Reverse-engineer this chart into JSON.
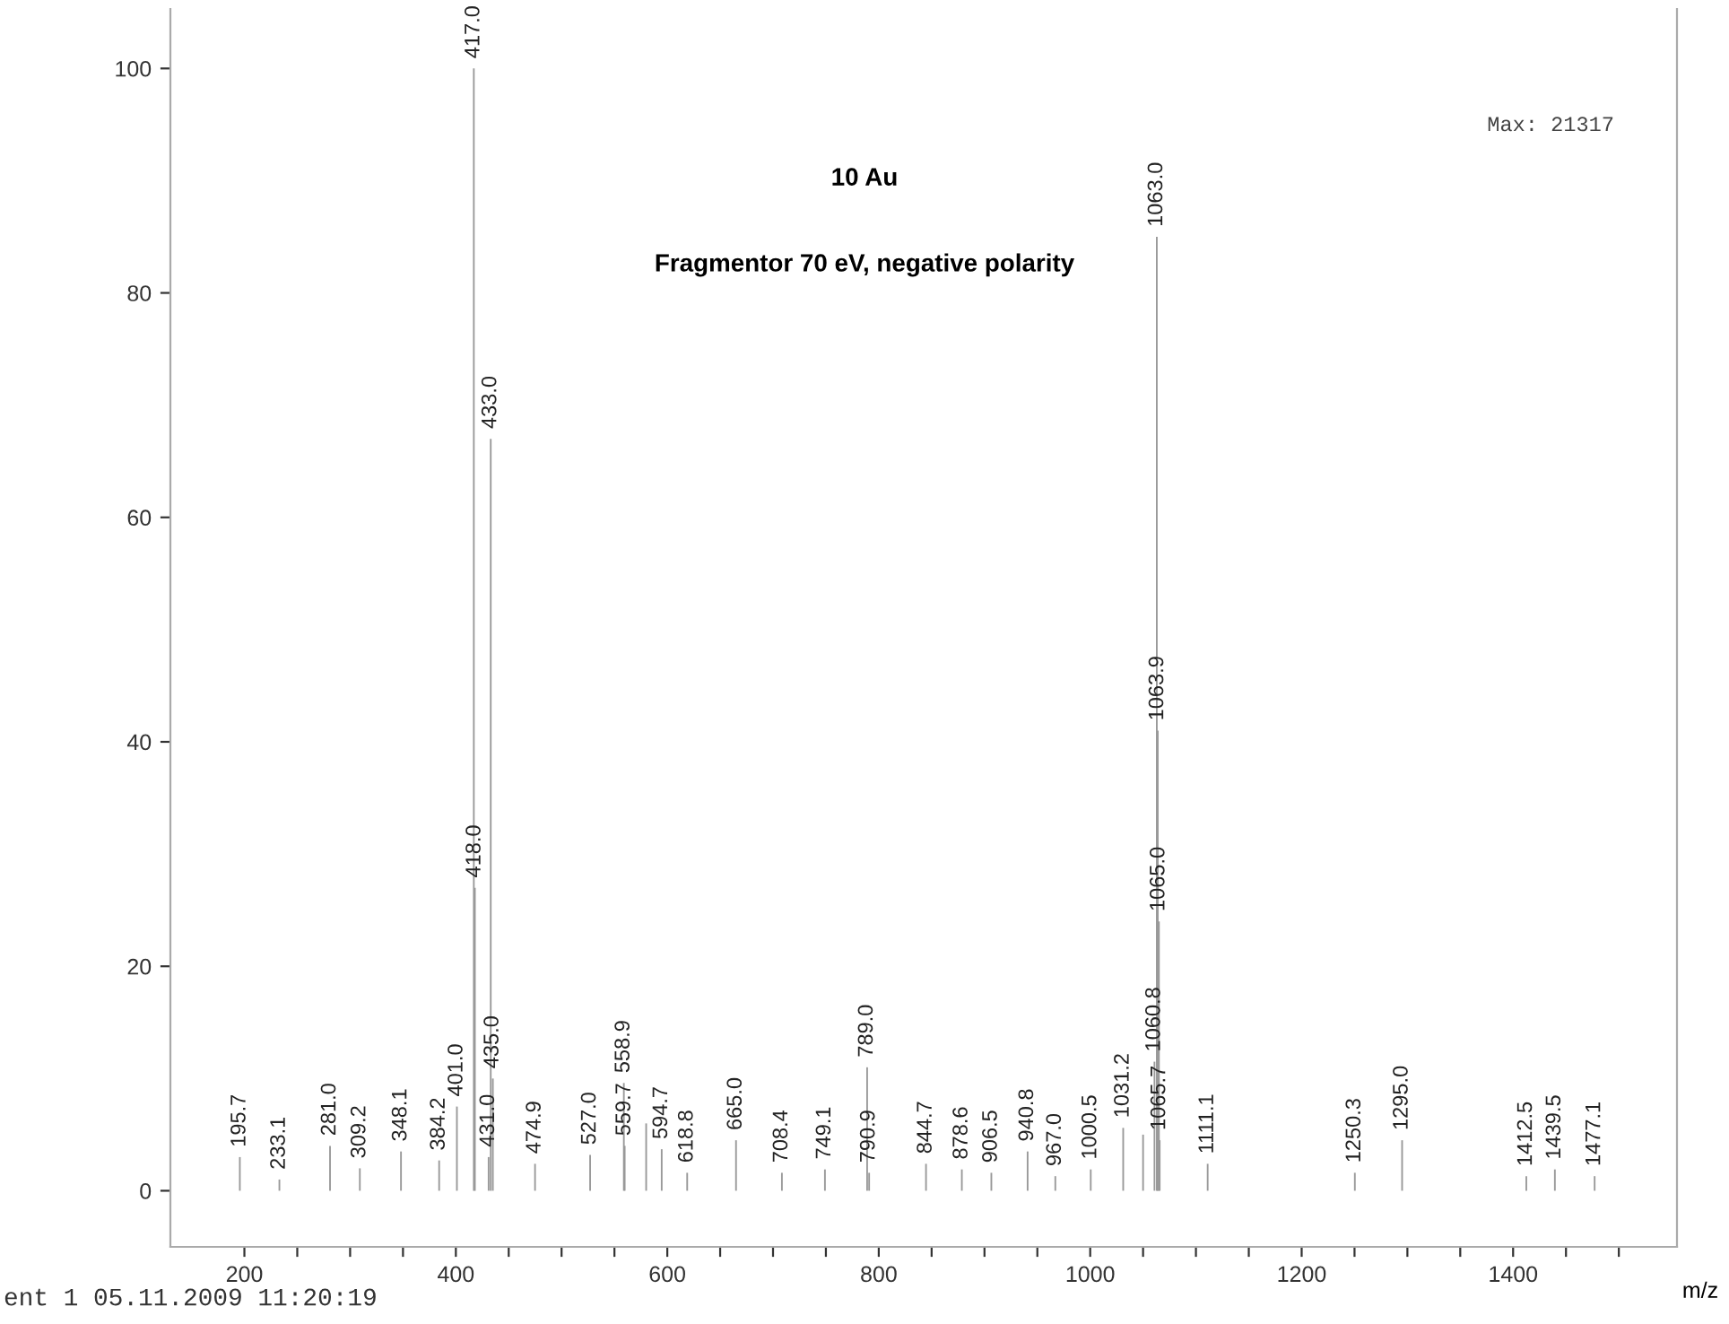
{
  "chart_data": {
    "type": "bar",
    "title": "10 Au",
    "subtitle": "Fragmentor 70 eV, negative polarity",
    "xlabel": "m/z",
    "x": [
      195.7,
      233.1,
      281.0,
      309.2,
      348.1,
      384.2,
      401.0,
      417.0,
      418.0,
      431.0,
      433.0,
      435.0,
      474.9,
      527.0,
      558.9,
      559.7,
      580.0,
      594.7,
      618.8,
      665.0,
      708.4,
      749.1,
      789.0,
      790.9,
      844.7,
      878.6,
      906.5,
      940.8,
      967.0,
      1000.5,
      1031.2,
      1050.0,
      1060.8,
      1063.0,
      1063.9,
      1065.0,
      1065.7,
      1111.1,
      1250.3,
      1295.0,
      1412.5,
      1439.5,
      1477.1
    ],
    "values": [
      3,
      1,
      4,
      2,
      3.5,
      2.7,
      7.5,
      100,
      27,
      3,
      67,
      10,
      2.4,
      3.2,
      9.6,
      4,
      6,
      3.7,
      1.6,
      4.5,
      1.6,
      1.9,
      11,
      1.6,
      2.4,
      1.9,
      1.6,
      3.5,
      1.3,
      1.9,
      5.6,
      5,
      11.5,
      85,
      41,
      24,
      4.5,
      2.4,
      1.6,
      4.5,
      1.3,
      1.9,
      1.3
    ],
    "color": "#999999",
    "xlim": [
      130,
      1555
    ],
    "ylim": [
      -5,
      105.3
    ],
    "xticks": [
      200,
      {
        "value": 250,
        "label": null
      },
      {
        "value": 300,
        "label": null
      },
      {
        "value": 350,
        "label": null
      },
      400,
      {
        "value": 450,
        "label": null
      },
      {
        "value": 500,
        "label": null
      },
      {
        "value": 550,
        "label": null
      },
      600,
      {
        "value": 650,
        "label": null
      },
      {
        "value": 700,
        "label": null
      },
      {
        "value": 750,
        "label": null
      },
      800,
      {
        "value": 850,
        "label": null
      },
      {
        "value": 900,
        "label": null
      },
      {
        "value": 950,
        "label": null
      },
      1000,
      {
        "value": 1050,
        "label": null
      },
      {
        "value": 1100,
        "label": null
      },
      {
        "value": 1150,
        "label": null
      },
      1200,
      {
        "value": 1250,
        "label": null
      },
      {
        "value": 1300,
        "label": null
      },
      {
        "value": 1350,
        "label": null
      },
      1400,
      {
        "value": 1450,
        "label": null
      },
      {
        "value": 1500,
        "label": null
      }
    ],
    "yticks": [
      0,
      20,
      40,
      60,
      80,
      100
    ],
    "annotations": [
      "Max: 21317",
      "ent 1 05.11.2009 11:20:19",
      {
        "text": "195.7",
        "x": 195.7,
        "y": 3
      },
      {
        "text": "233.1",
        "x": 233.1,
        "y": 1
      },
      {
        "text": "281.0",
        "x": 281.0,
        "y": 4
      },
      {
        "text": "309.2",
        "x": 309.2,
        "y": 2
      },
      {
        "text": "348.1",
        "x": 348.1,
        "y": 3.5
      },
      {
        "text": "384.2",
        "x": 384.2,
        "y": 2.7
      },
      {
        "text": "401.0",
        "x": 401.0,
        "y": 7.5
      },
      {
        "text": "417.0",
        "x": 417.0,
        "y": 100
      },
      {
        "text": "418.0",
        "x": 418.0,
        "y": 27
      },
      {
        "text": "431.0",
        "x": 431.0,
        "y": 3
      },
      {
        "text": "433.0",
        "x": 433.0,
        "y": 67
      },
      {
        "text": "435.0",
        "x": 435.0,
        "y": 10
      },
      {
        "text": "474.9",
        "x": 474.9,
        "y": 2.4
      },
      {
        "text": "527.0",
        "x": 527.0,
        "y": 3.2
      },
      {
        "text": "558.9",
        "x": 558.9,
        "y": 9.6
      },
      {
        "text": "559.7",
        "x": 559.7,
        "y": 4
      },
      {
        "text": "594.7",
        "x": 594.7,
        "y": 3.7
      },
      {
        "text": "618.8",
        "x": 618.8,
        "y": 1.6
      },
      {
        "text": "665.0",
        "x": 665.0,
        "y": 4.5
      },
      {
        "text": "708.4",
        "x": 708.4,
        "y": 1.6
      },
      {
        "text": "749.1",
        "x": 749.1,
        "y": 1.9
      },
      {
        "text": "789.0",
        "x": 789.0,
        "y": 11
      },
      {
        "text": "790.9",
        "x": 790.9,
        "y": 1.6
      },
      {
        "text": "844.7",
        "x": 844.7,
        "y": 2.4
      },
      {
        "text": "878.6",
        "x": 878.6,
        "y": 1.9
      },
      {
        "text": "906.5",
        "x": 906.5,
        "y": 1.6
      },
      {
        "text": "940.8",
        "x": 940.8,
        "y": 3.5
      },
      {
        "text": "967.0",
        "x": 967.0,
        "y": 1.3
      },
      {
        "text": "1000.5",
        "x": 1000.5,
        "y": 1.9
      },
      {
        "text": "1031.2",
        "x": 1031.2,
        "y": 5.6
      },
      {
        "text": "1060.8",
        "x": 1060.8,
        "y": 11.5
      },
      {
        "text": "1063.0",
        "x": 1063.0,
        "y": 85
      },
      {
        "text": "1063.9",
        "x": 1063.9,
        "y": 41
      },
      {
        "text": "1065.0",
        "x": 1065.0,
        "y": 24
      },
      {
        "text": "1065.7",
        "x": 1065.7,
        "y": 4.5
      },
      {
        "text": "1111.1",
        "x": 1111.1,
        "y": 2.4
      },
      {
        "text": "1250.3",
        "x": 1250.3,
        "y": 1.6
      },
      {
        "text": "1295.0",
        "x": 1295.0,
        "y": 4.5
      },
      {
        "text": "1412.5",
        "x": 1412.5,
        "y": 1.3
      },
      {
        "text": "1439.5",
        "x": 1439.5,
        "y": 1.9
      },
      {
        "text": "1477.1",
        "x": 1477.1,
        "y": 1.3
      }
    ],
    "grid": false,
    "legend": false
  }
}
